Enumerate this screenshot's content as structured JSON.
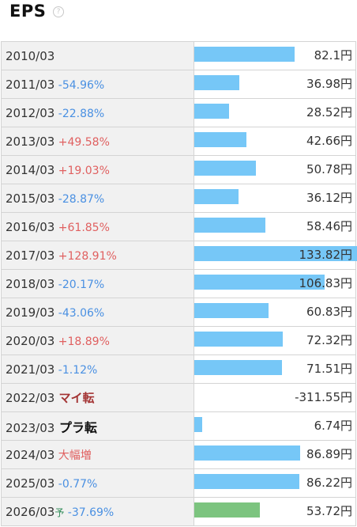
{
  "title": "EPS",
  "help_icon": "?",
  "unit": "円",
  "rows": [
    {
      "year": "2010/03",
      "change": "",
      "value": "82.1",
      "cls": "",
      "bar": 0.613,
      "forecast": false
    },
    {
      "year": "2011/03",
      "change": "-54.96%",
      "value": "36.98",
      "cls": "neg",
      "bar": 0.276,
      "forecast": false
    },
    {
      "year": "2012/03",
      "change": "-22.88%",
      "value": "28.52",
      "cls": "neg",
      "bar": 0.213,
      "forecast": false
    },
    {
      "year": "2013/03",
      "change": "+49.58%",
      "value": "42.66",
      "cls": "pos",
      "bar": 0.319,
      "forecast": false
    },
    {
      "year": "2014/03",
      "change": "+19.03%",
      "value": "50.78",
      "cls": "pos",
      "bar": 0.379,
      "forecast": false
    },
    {
      "year": "2015/03",
      "change": "-28.87%",
      "value": "36.12",
      "cls": "neg",
      "bar": 0.27,
      "forecast": false
    },
    {
      "year": "2016/03",
      "change": "+61.85%",
      "value": "58.46",
      "cls": "pos",
      "bar": 0.437,
      "forecast": false
    },
    {
      "year": "2017/03",
      "change": "+128.91%",
      "value": "133.82",
      "cls": "pos",
      "bar": 1.0,
      "forecast": false
    },
    {
      "year": "2018/03",
      "change": "-20.17%",
      "value": "106.83",
      "cls": "neg",
      "bar": 0.798,
      "forecast": false
    },
    {
      "year": "2019/03",
      "change": "-43.06%",
      "value": "60.83",
      "cls": "neg",
      "bar": 0.455,
      "forecast": false
    },
    {
      "year": "2020/03",
      "change": "+18.89%",
      "value": "72.32",
      "cls": "pos",
      "bar": 0.54,
      "forecast": false
    },
    {
      "year": "2021/03",
      "change": "-1.12%",
      "value": "71.51",
      "cls": "neg",
      "bar": 0.534,
      "forecast": false
    },
    {
      "year": "2022/03",
      "change": "マイ転",
      "value": "-311.55",
      "cls": "mai",
      "bar": 0,
      "forecast": false
    },
    {
      "year": "2023/03",
      "change": "プラ転",
      "value": "6.74",
      "cls": "pura",
      "bar": 0.05,
      "forecast": false
    },
    {
      "year": "2024/03",
      "change": "大幅増",
      "value": "86.89",
      "cls": "big",
      "bar": 0.649,
      "forecast": false
    },
    {
      "year": "2025/03",
      "change": "-0.77%",
      "value": "86.22",
      "cls": "neg",
      "bar": 0.644,
      "forecast": false
    },
    {
      "year": "2026/03",
      "forecast_mark": "予",
      "change": "-37.69%",
      "value": "53.72",
      "cls": "neg",
      "bar": 0.401,
      "forecast": true
    }
  ]
}
